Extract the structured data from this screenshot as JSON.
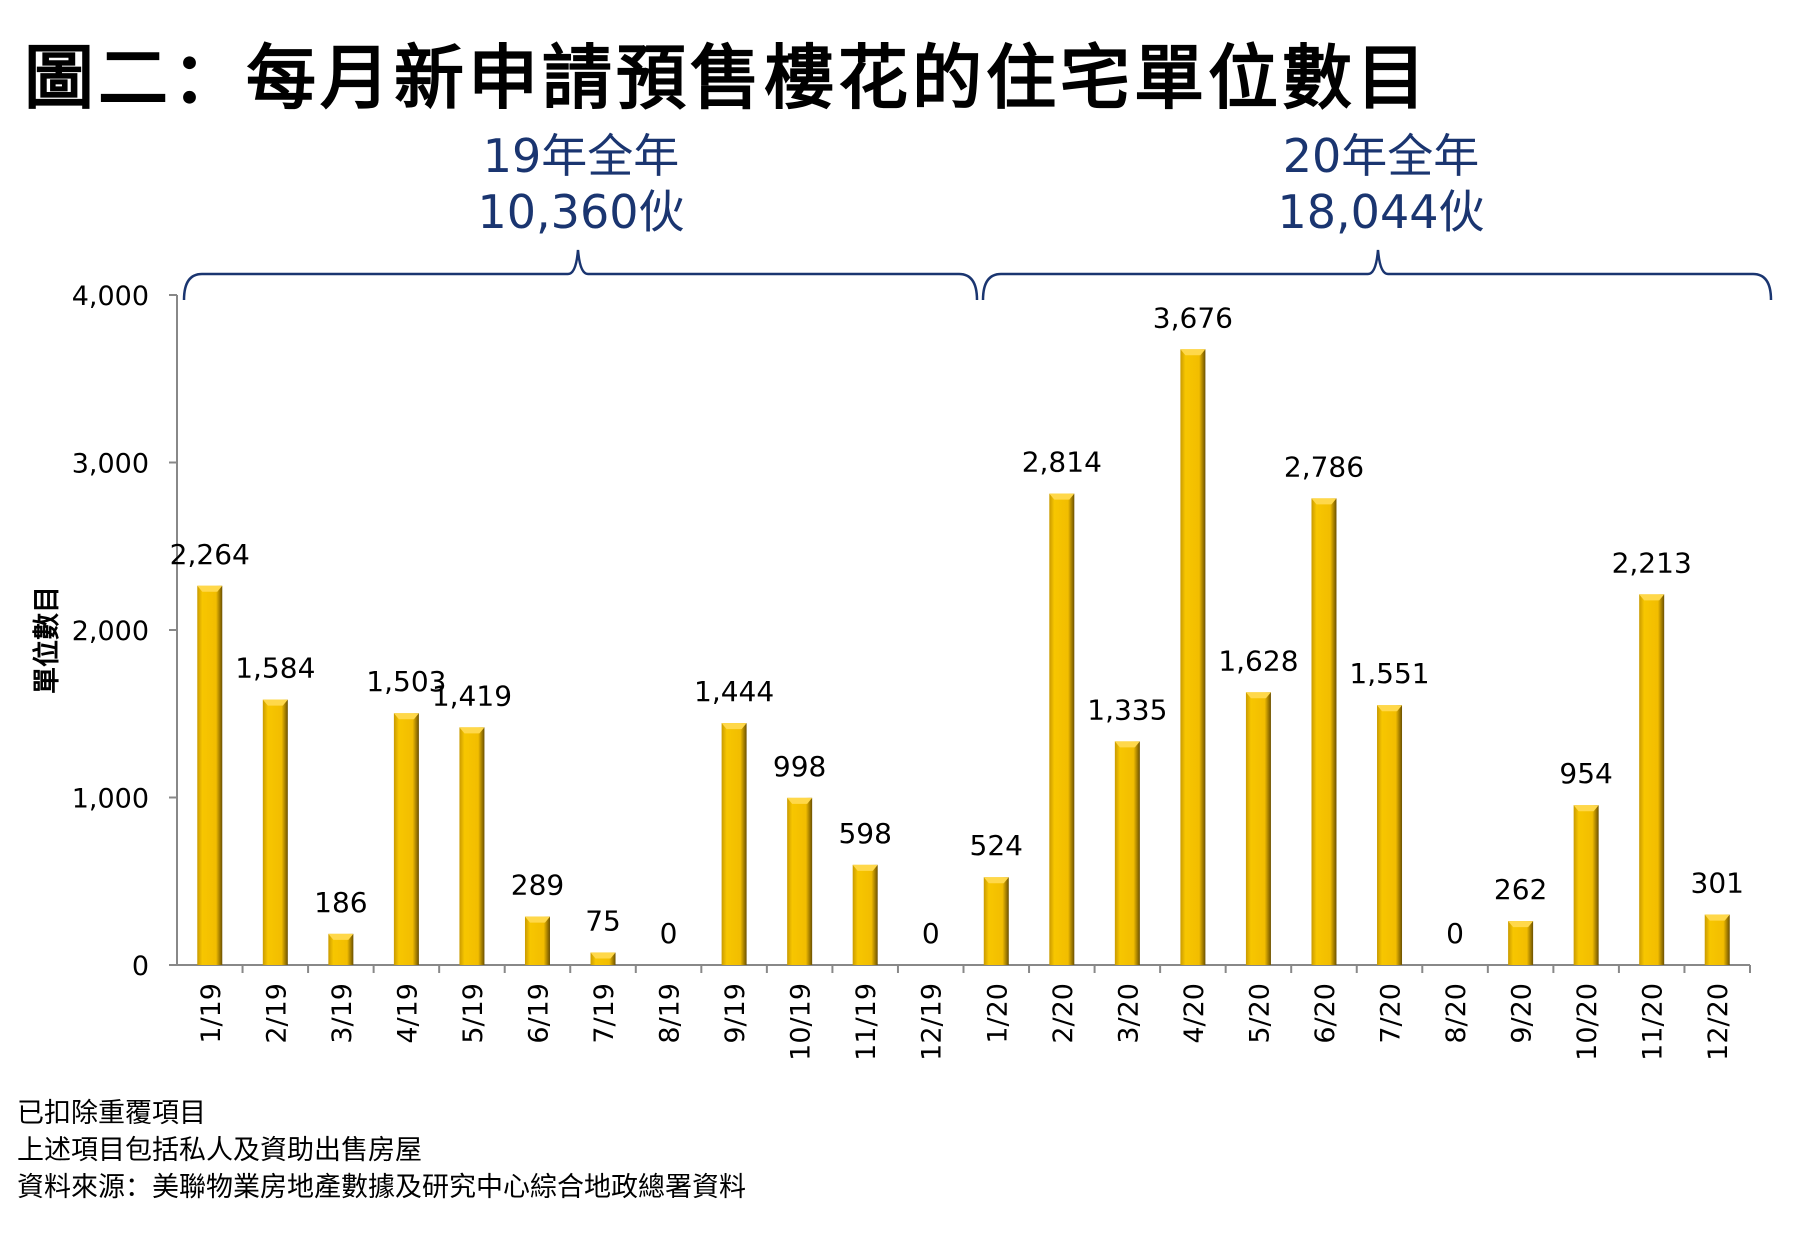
{
  "title": "圖二：每月新申請預售樓花的住宅單位數目",
  "annotations": [
    {
      "line1": "19年全年",
      "line2": "10,360伙"
    },
    {
      "line1": "20年全年",
      "line2": "18,044伙"
    }
  ],
  "notes": [
    "已扣除重覆項目",
    "上述項目包括私人及資助出售房屋",
    "資料來源：美聯物業房地產數據及研究中心綜合地政總署資料"
  ],
  "colors": {
    "bar": "#f2bd00",
    "bar_dark": "#7a5c00",
    "annotation": "#1a3570"
  },
  "chart_data": {
    "type": "bar",
    "title": "圖二：每月新申請預售樓花的住宅單位數目",
    "xlabel": "",
    "ylabel": "單位數目",
    "ylim": [
      0,
      4000
    ],
    "yticks": [
      0,
      1000,
      2000,
      3000,
      4000
    ],
    "ytick_labels": [
      "0",
      "1,000",
      "2,000",
      "3,000",
      "4,000"
    ],
    "grid": false,
    "categories": [
      "1/19",
      "2/19",
      "3/19",
      "4/19",
      "5/19",
      "6/19",
      "7/19",
      "8/19",
      "9/19",
      "10/19",
      "11/19",
      "12/19",
      "1/20",
      "2/20",
      "3/20",
      "4/20",
      "5/20",
      "6/20",
      "7/20",
      "8/20",
      "9/20",
      "10/20",
      "11/20",
      "12/20"
    ],
    "values": [
      2264,
      1584,
      186,
      1503,
      1419,
      289,
      75,
      0,
      1444,
      998,
      598,
      0,
      524,
      2814,
      1335,
      3676,
      1628,
      2786,
      1551,
      0,
      262,
      954,
      2213,
      301
    ],
    "value_labels": [
      "2,264",
      "1,584",
      "186",
      "1,503",
      "1,419",
      "289",
      "75",
      "0",
      "1,444",
      "998",
      "598",
      "0",
      "524",
      "2,814",
      "1,335",
      "3,676",
      "1,628",
      "2,786",
      "1,551",
      "0",
      "262",
      "954",
      "2,213",
      "301"
    ]
  }
}
